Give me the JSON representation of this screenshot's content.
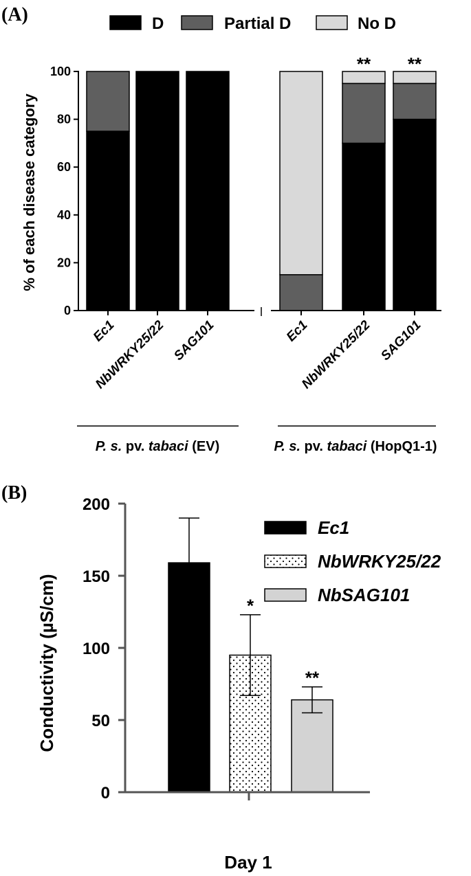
{
  "chart_data": [
    {
      "panel": "(A)",
      "type": "bar",
      "stacked": true,
      "ylabel": "% of each disease category",
      "ylim": [
        0,
        100
      ],
      "yticks": [
        0,
        20,
        40,
        60,
        80,
        100
      ],
      "categories": [
        "Ec1",
        "NbWRKY25/22",
        "SAG101",
        "Ec1",
        "NbWRKY25/22",
        "SAG101"
      ],
      "groups": [
        {
          "label_italic": "P. s.",
          "label_mid": " pv. ",
          "label_italic2": "tabaci",
          "label_end": " (EV)",
          "indices": [
            0,
            1,
            2
          ]
        },
        {
          "label_italic": "P. s.",
          "label_mid": " pv. ",
          "label_italic2": "tabaci",
          "label_end": " (HopQ1-1)",
          "indices": [
            3,
            4,
            5
          ]
        }
      ],
      "series": [
        {
          "name": "D",
          "color": "#000000",
          "values": [
            75,
            100,
            100,
            0,
            70,
            80
          ]
        },
        {
          "name": "Partial D",
          "color": "#5f5f5f",
          "values": [
            25,
            0,
            0,
            15,
            25,
            15
          ]
        },
        {
          "name": "No D",
          "color": "#d9d9d9",
          "values": [
            0,
            0,
            0,
            85,
            5,
            5
          ]
        }
      ],
      "annotations": [
        "",
        "",
        "",
        "",
        "**",
        "**"
      ],
      "legend_position": "top"
    },
    {
      "panel": "(B)",
      "type": "bar",
      "ylabel": "Conductivity (µS/cm)",
      "xlabel": "Day 1",
      "ylim": [
        0,
        200
      ],
      "yticks": [
        0,
        50,
        100,
        150,
        200
      ],
      "series": [
        {
          "name": "Ec1",
          "value": 159,
          "error": 31,
          "fill": "solid-black",
          "annotation": ""
        },
        {
          "name": "NbWRKY25/22",
          "value": 95,
          "error": 28,
          "fill": "dots",
          "annotation": "*"
        },
        {
          "name": "NbSAG101",
          "value": 64,
          "error": 9,
          "fill": "light-gray",
          "annotation": "**"
        }
      ],
      "legend_position": "top-right"
    }
  ]
}
